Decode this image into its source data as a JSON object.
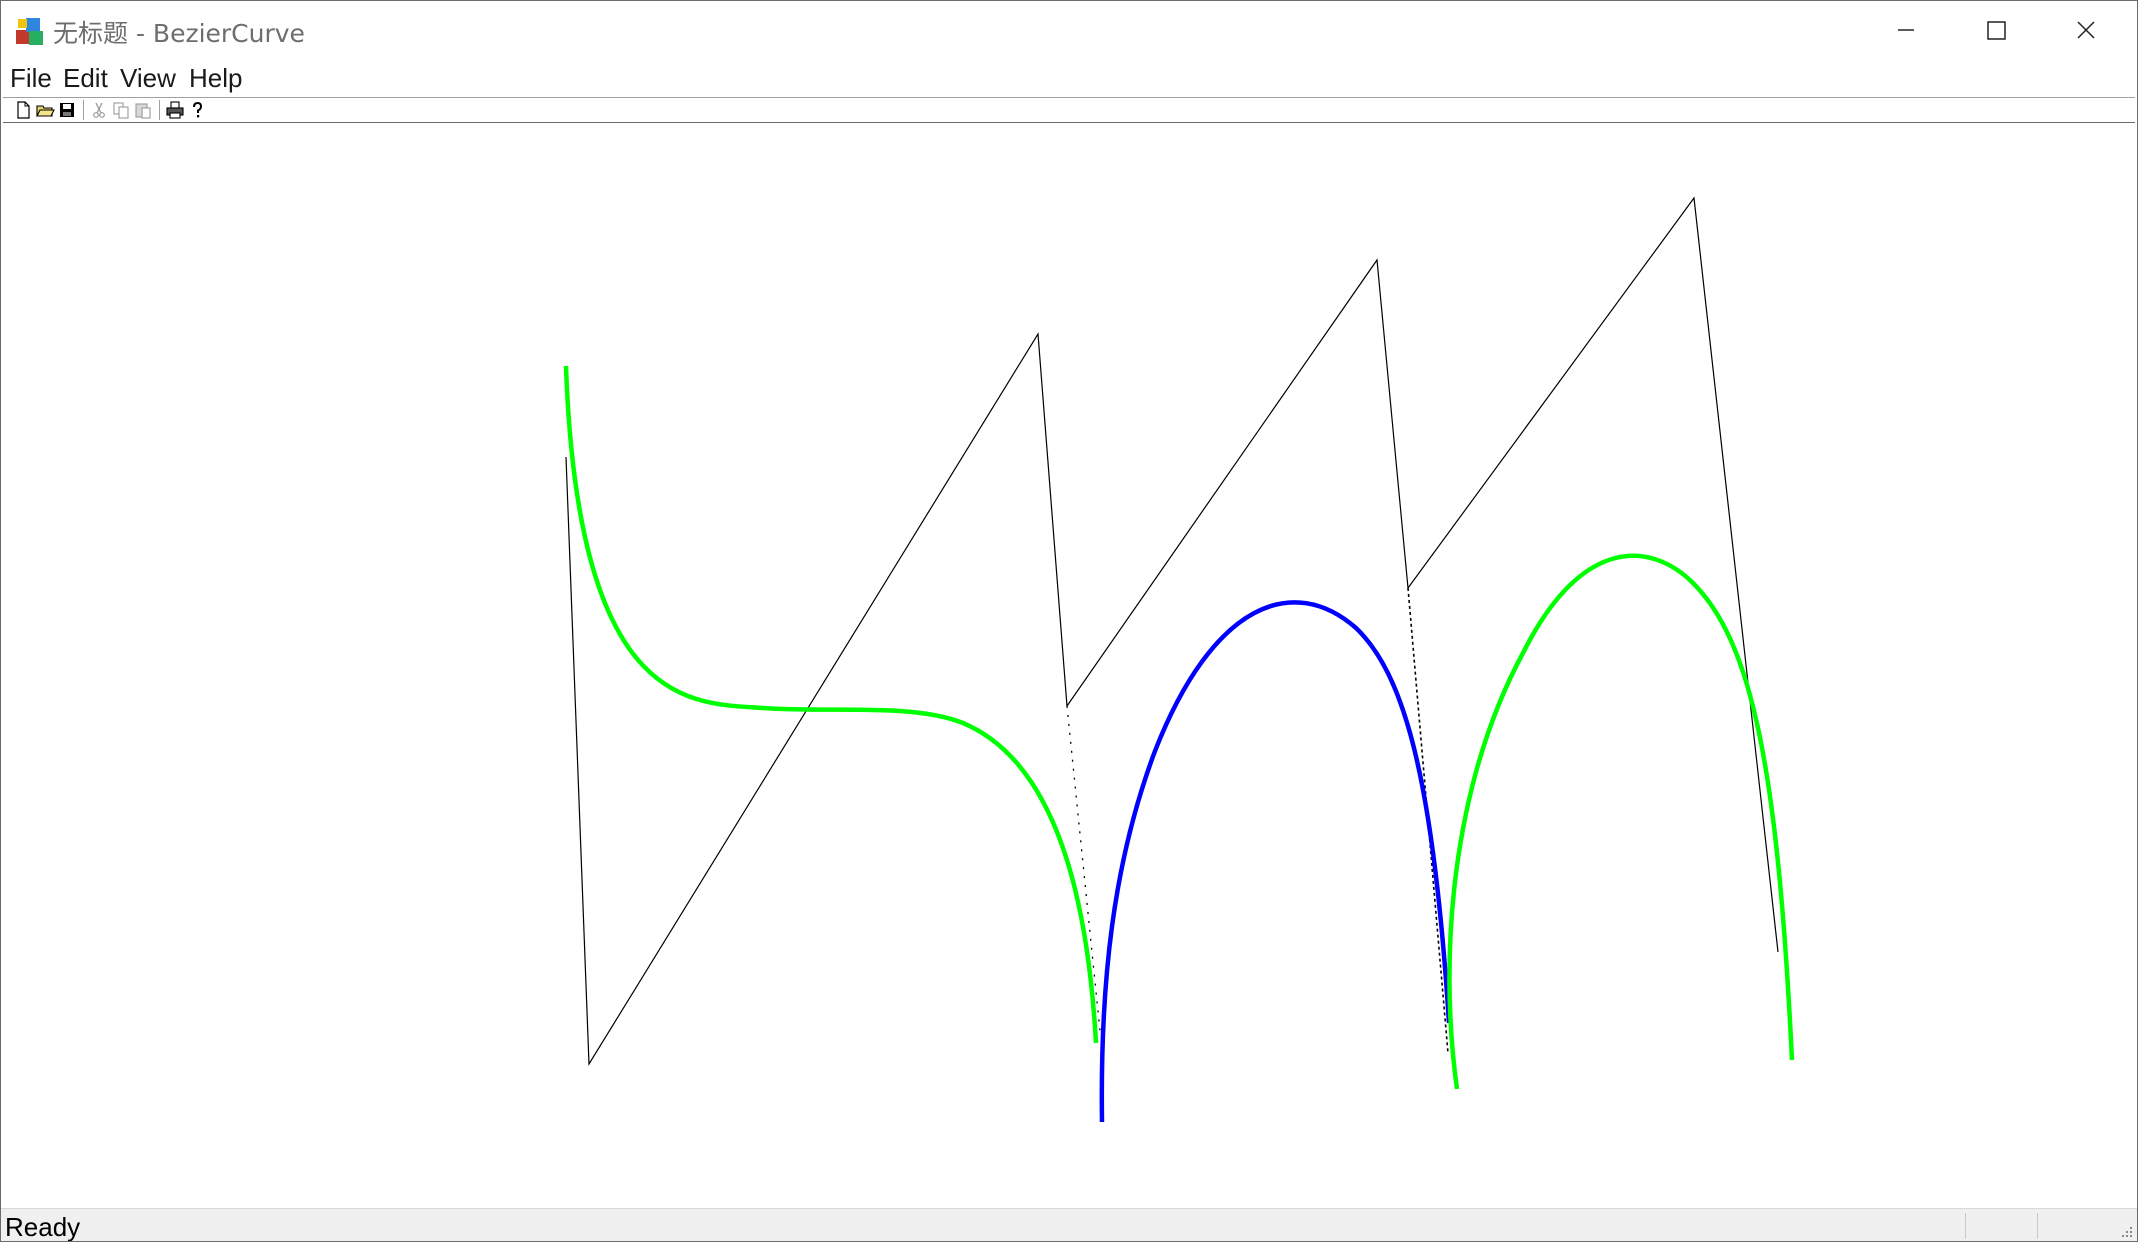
{
  "window": {
    "title": "无标题 - BezierCurve",
    "controls": {
      "minimize": "minimize",
      "maximize": "maximize",
      "close": "close"
    }
  },
  "menu": {
    "file": "File",
    "edit": "Edit",
    "view": "View",
    "help": "Help"
  },
  "toolbar": {
    "icons": [
      "new-file-icon",
      "open-folder-icon",
      "save-icon",
      "cut-icon",
      "copy-icon",
      "paste-icon",
      "print-icon",
      "help-icon"
    ]
  },
  "drawing": {
    "control_polygon_color": "#000000",
    "curve_colors": {
      "segment_1": "#00ff00",
      "segment_2": "#0000ff",
      "segment_3": "#00ff00"
    }
  },
  "status": {
    "text": "Ready"
  }
}
